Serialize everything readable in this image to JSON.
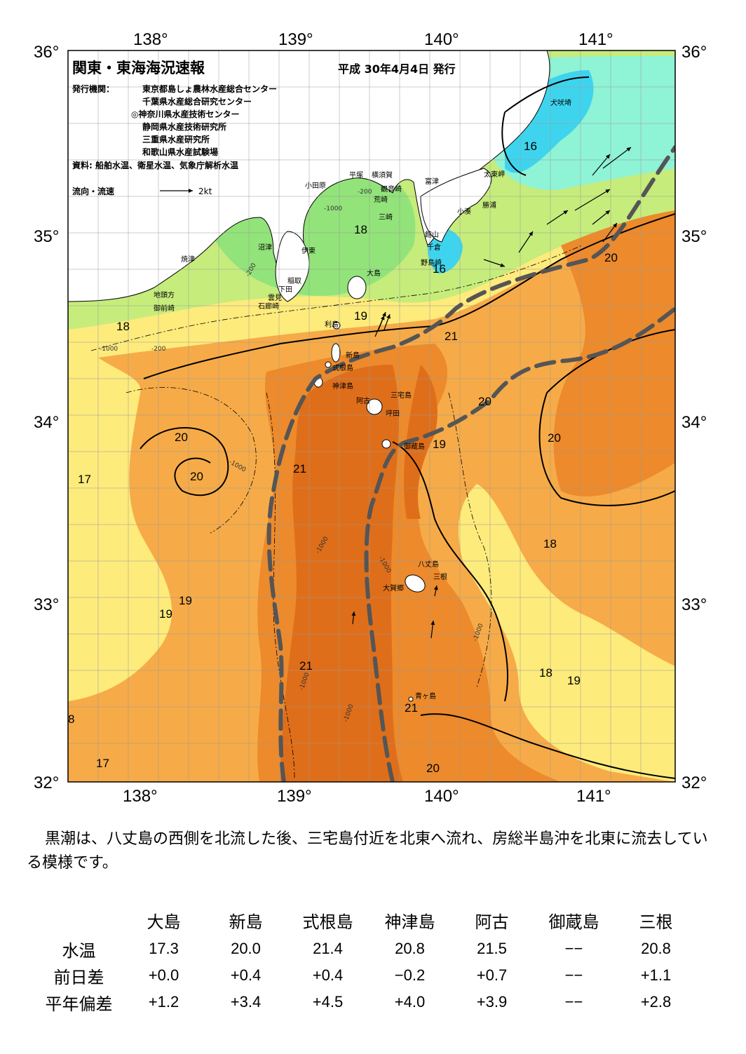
{
  "map": {
    "title": "関東・東海海況速報",
    "issue_date": "平成 30年4月4日 発行",
    "publisher_label": "発行機関：",
    "publishers": [
      "東京都島しょ農林水産総合センター",
      "千葉県水産総合研究センター",
      "◎神奈川県水産技術センター",
      "静岡県水産技術研究所",
      "三重県水産研究所",
      "和歌山県水産試験場"
    ],
    "sources": "資料: 船舶水温、衛星水温、気象庁解析水温",
    "legend_label": "流向・流速",
    "legend_unit": "2kt",
    "lon_labels": [
      "138°",
      "139°",
      "140°",
      "141°"
    ],
    "lat_labels": [
      "36°",
      "35°",
      "34°",
      "33°",
      "32°"
    ],
    "place_labels": [
      {
        "text": "犬吠埼"
      },
      {
        "text": "太東岬"
      },
      {
        "text": "勝浦"
      },
      {
        "text": "小湊"
      },
      {
        "text": "富津"
      },
      {
        "text": "館山"
      },
      {
        "text": "千倉"
      },
      {
        "text": "野島崎"
      },
      {
        "text": "横須賀"
      },
      {
        "text": "観音崎"
      },
      {
        "text": "荒崎"
      },
      {
        "text": "三崎"
      },
      {
        "text": "平塚"
      },
      {
        "text": "小田原"
      },
      {
        "text": "沼津"
      },
      {
        "text": "伊東"
      },
      {
        "text": "焼津"
      },
      {
        "text": "稲取"
      },
      {
        "text": "下田"
      },
      {
        "text": "雲見"
      },
      {
        "text": "石廊崎"
      },
      {
        "text": "地頭方"
      },
      {
        "text": "御前崎"
      },
      {
        "text": "大島"
      },
      {
        "text": "利島"
      },
      {
        "text": "新島"
      },
      {
        "text": "式根島"
      },
      {
        "text": "神津島"
      },
      {
        "text": "三宅島"
      },
      {
        "text": "阿古"
      },
      {
        "text": "坪田"
      },
      {
        "text": "御蔵島"
      },
      {
        "text": "八丈島"
      },
      {
        "text": "三根"
      },
      {
        "text": "大賀郷"
      },
      {
        "text": "青ヶ島"
      }
    ],
    "isotherm_labels": [
      {
        "text": "16"
      },
      {
        "text": "18"
      },
      {
        "text": "16"
      },
      {
        "text": "20"
      },
      {
        "text": "19"
      },
      {
        "text": "21"
      },
      {
        "text": "18"
      },
      {
        "text": "20"
      },
      {
        "text": "20"
      },
      {
        "text": "20"
      },
      {
        "text": "19"
      },
      {
        "text": "20"
      },
      {
        "text": "21"
      },
      {
        "text": "17"
      },
      {
        "text": "18"
      },
      {
        "text": "19"
      },
      {
        "text": "19"
      },
      {
        "text": "21"
      },
      {
        "text": "18"
      },
      {
        "text": "19"
      },
      {
        "text": "21"
      },
      {
        "text": "8"
      },
      {
        "text": "17"
      },
      {
        "text": "20"
      }
    ],
    "depth_labels": [
      "-200",
      "-1000",
      "-200",
      "-1000",
      "-200",
      "-1000",
      "-1000",
      "-1000",
      "-1000",
      "-1000",
      "-1000"
    ],
    "colors": {
      "lt16": "#3fd4ee",
      "c16_17": "#8ff3d6",
      "c17_18": "#92e37a",
      "c18_19": "#c6ec7c",
      "c19_20": "#fdeb7c",
      "c20_21": "#f6ab48",
      "gt21": "#ec8a2c",
      "core": "#df6e1a",
      "land": "#ffffff",
      "kuroshio": "#555555"
    }
  },
  "description": "黒潮は、八丈島の西側を北流した後、三宅島付近を北東へ流れ、房総半島沖を北東に流去している模様です。",
  "table": {
    "columns": [
      "大島",
      "新島",
      "式根島",
      "神津島",
      "阿古",
      "御蔵島",
      "三根"
    ],
    "rows": [
      {
        "label": "水温",
        "values": [
          "17.3",
          "20.0",
          "21.4",
          "20.8",
          "21.5",
          "−−",
          "20.8"
        ]
      },
      {
        "label": "前日差",
        "values": [
          "+0.0",
          "+0.4",
          "+0.4",
          "−0.2",
          "+0.7",
          "−−",
          "+1.1"
        ]
      },
      {
        "label": "平年偏差",
        "values": [
          "+1.2",
          "+3.4",
          "+4.5",
          "+4.0",
          "+3.9",
          "−−",
          "+2.8"
        ]
      }
    ]
  }
}
